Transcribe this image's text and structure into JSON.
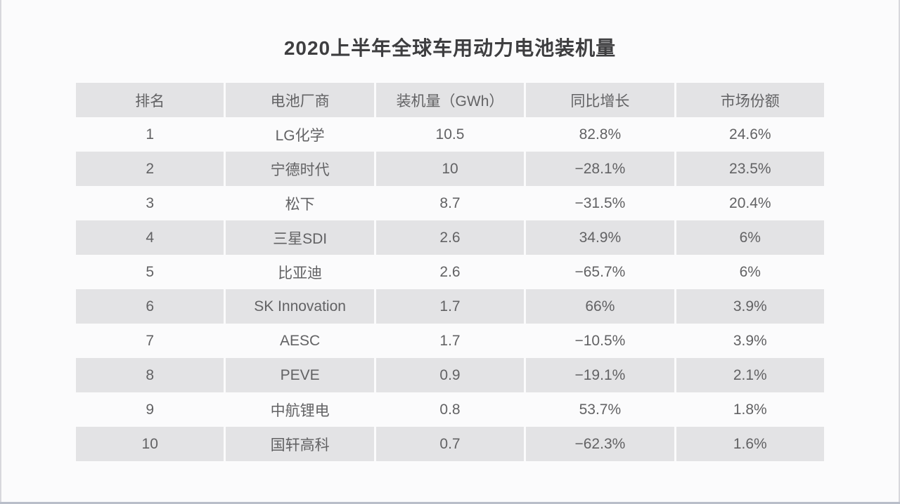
{
  "page": {
    "title": "2020上半年全球车用动力电池装机量",
    "colors": {
      "background": "#fbfbfc",
      "cell_gray": "#e3e3e5",
      "title_text": "#3e3e40",
      "cell_text": "#626264",
      "edge_line": "#d8d8dd",
      "bottom_line": "#b9bec9"
    }
  },
  "chart_data": {
    "type": "table",
    "title": "2020上半年全球车用动力电池装机量",
    "columns": [
      "排名",
      "电池厂商",
      "装机量（GWh）",
      "同比增长",
      "市场份额"
    ],
    "rows": [
      [
        "1",
        "LG化学",
        "10.5",
        "82.8%",
        "24.6%"
      ],
      [
        "2",
        "宁德时代",
        "10",
        "−28.1%",
        "23.5%"
      ],
      [
        "3",
        "松下",
        "8.7",
        "−31.5%",
        "20.4%"
      ],
      [
        "4",
        "三星SDI",
        "2.6",
        "34.9%",
        "6%"
      ],
      [
        "5",
        "比亚迪",
        "2.6",
        "−65.7%",
        "6%"
      ],
      [
        "6",
        "SK Innovation",
        "1.7",
        "66%",
        "3.9%"
      ],
      [
        "7",
        "AESC",
        "1.7",
        "−10.5%",
        "3.9%"
      ],
      [
        "8",
        "PEVE",
        "0.9",
        "−19.1%",
        "2.1%"
      ],
      [
        "9",
        "中航锂电",
        "0.8",
        "53.7%",
        "1.8%"
      ],
      [
        "10",
        "国轩高科",
        "0.7",
        "−62.3%",
        "1.6%"
      ]
    ],
    "layout": {
      "shaded_rows": "header and even ranks (2,4,6,8,10)",
      "column_alignment": "center",
      "grid": "off"
    }
  }
}
